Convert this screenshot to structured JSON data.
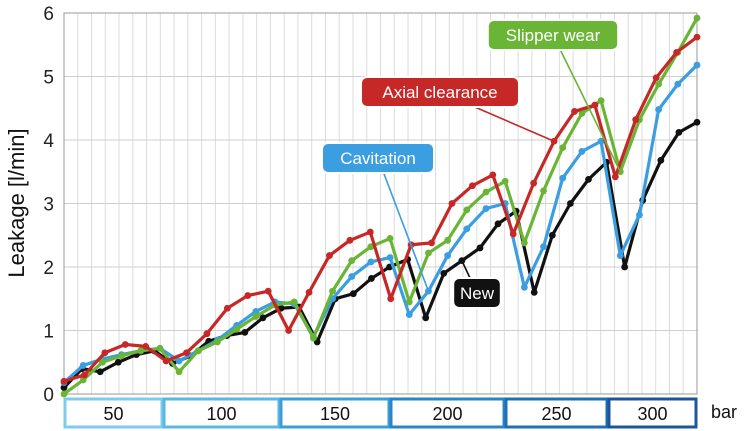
{
  "chart_data": {
    "type": "line",
    "ylabel": "Leakage [l/min]",
    "xlabel": "",
    "ylim": [
      0,
      6
    ],
    "yticks": [
      0,
      1,
      2,
      3,
      4,
      5,
      6
    ],
    "grid": true,
    "pressure_unit": "bar",
    "pressure_levels": [
      {
        "label": "50",
        "color": "#7fcbea"
      },
      {
        "label": "100",
        "color": "#5ab7e2"
      },
      {
        "label": "150",
        "color": "#3a9fd8"
      },
      {
        "label": "200",
        "color": "#2a85c8"
      },
      {
        "label": "250",
        "color": "#1f6fb4"
      },
      {
        "label": "300",
        "color": "#1c5699"
      }
    ],
    "series": [
      {
        "name": "New",
        "color": "#111111",
        "values": [
          0.1,
          0.4,
          0.35,
          0.5,
          0.62,
          0.68,
          0.48,
          0.6,
          0.83,
          0.92,
          0.97,
          1.2,
          1.35,
          1.37,
          0.82,
          1.5,
          1.58,
          1.82,
          2.0,
          2.12,
          1.2,
          1.9,
          2.1,
          2.3,
          2.68,
          2.88,
          1.6,
          2.5,
          3.0,
          3.38,
          3.65,
          2.0,
          3.05,
          3.68,
          4.12,
          4.28
        ]
      },
      {
        "name": "Cavitation",
        "color": "#3a9ee0",
        "values": [
          0.18,
          0.45,
          0.55,
          0.62,
          0.68,
          0.72,
          0.52,
          0.68,
          0.85,
          1.08,
          1.3,
          1.45,
          1.42,
          0.9,
          1.5,
          1.85,
          2.08,
          2.15,
          1.25,
          1.62,
          2.18,
          2.6,
          2.92,
          3.0,
          1.68,
          2.32,
          3.4,
          3.82,
          3.98,
          2.18,
          2.82,
          4.48,
          4.88,
          5.18
        ]
      },
      {
        "name": "Slipper wear",
        "color": "#6ab536",
        "values": [
          0.0,
          0.22,
          0.5,
          0.6,
          0.68,
          0.72,
          0.35,
          0.68,
          0.82,
          1.02,
          1.22,
          1.4,
          1.45,
          0.88,
          1.62,
          2.1,
          2.32,
          2.45,
          1.45,
          2.22,
          2.42,
          2.9,
          3.18,
          3.35,
          2.38,
          3.2,
          3.88,
          4.42,
          4.62,
          3.5,
          4.32,
          4.88,
          5.38,
          5.92
        ]
      },
      {
        "name": "Axial clearance",
        "color": "#c62727",
        "values": [
          0.2,
          0.3,
          0.65,
          0.78,
          0.75,
          0.52,
          0.65,
          0.95,
          1.35,
          1.55,
          1.62,
          1.0,
          1.6,
          2.18,
          2.42,
          2.55,
          1.5,
          2.35,
          2.38,
          3.0,
          3.28,
          3.45,
          2.52,
          3.32,
          3.98,
          4.45,
          4.55,
          3.42,
          4.32,
          4.98,
          5.38,
          5.62
        ]
      }
    ]
  }
}
